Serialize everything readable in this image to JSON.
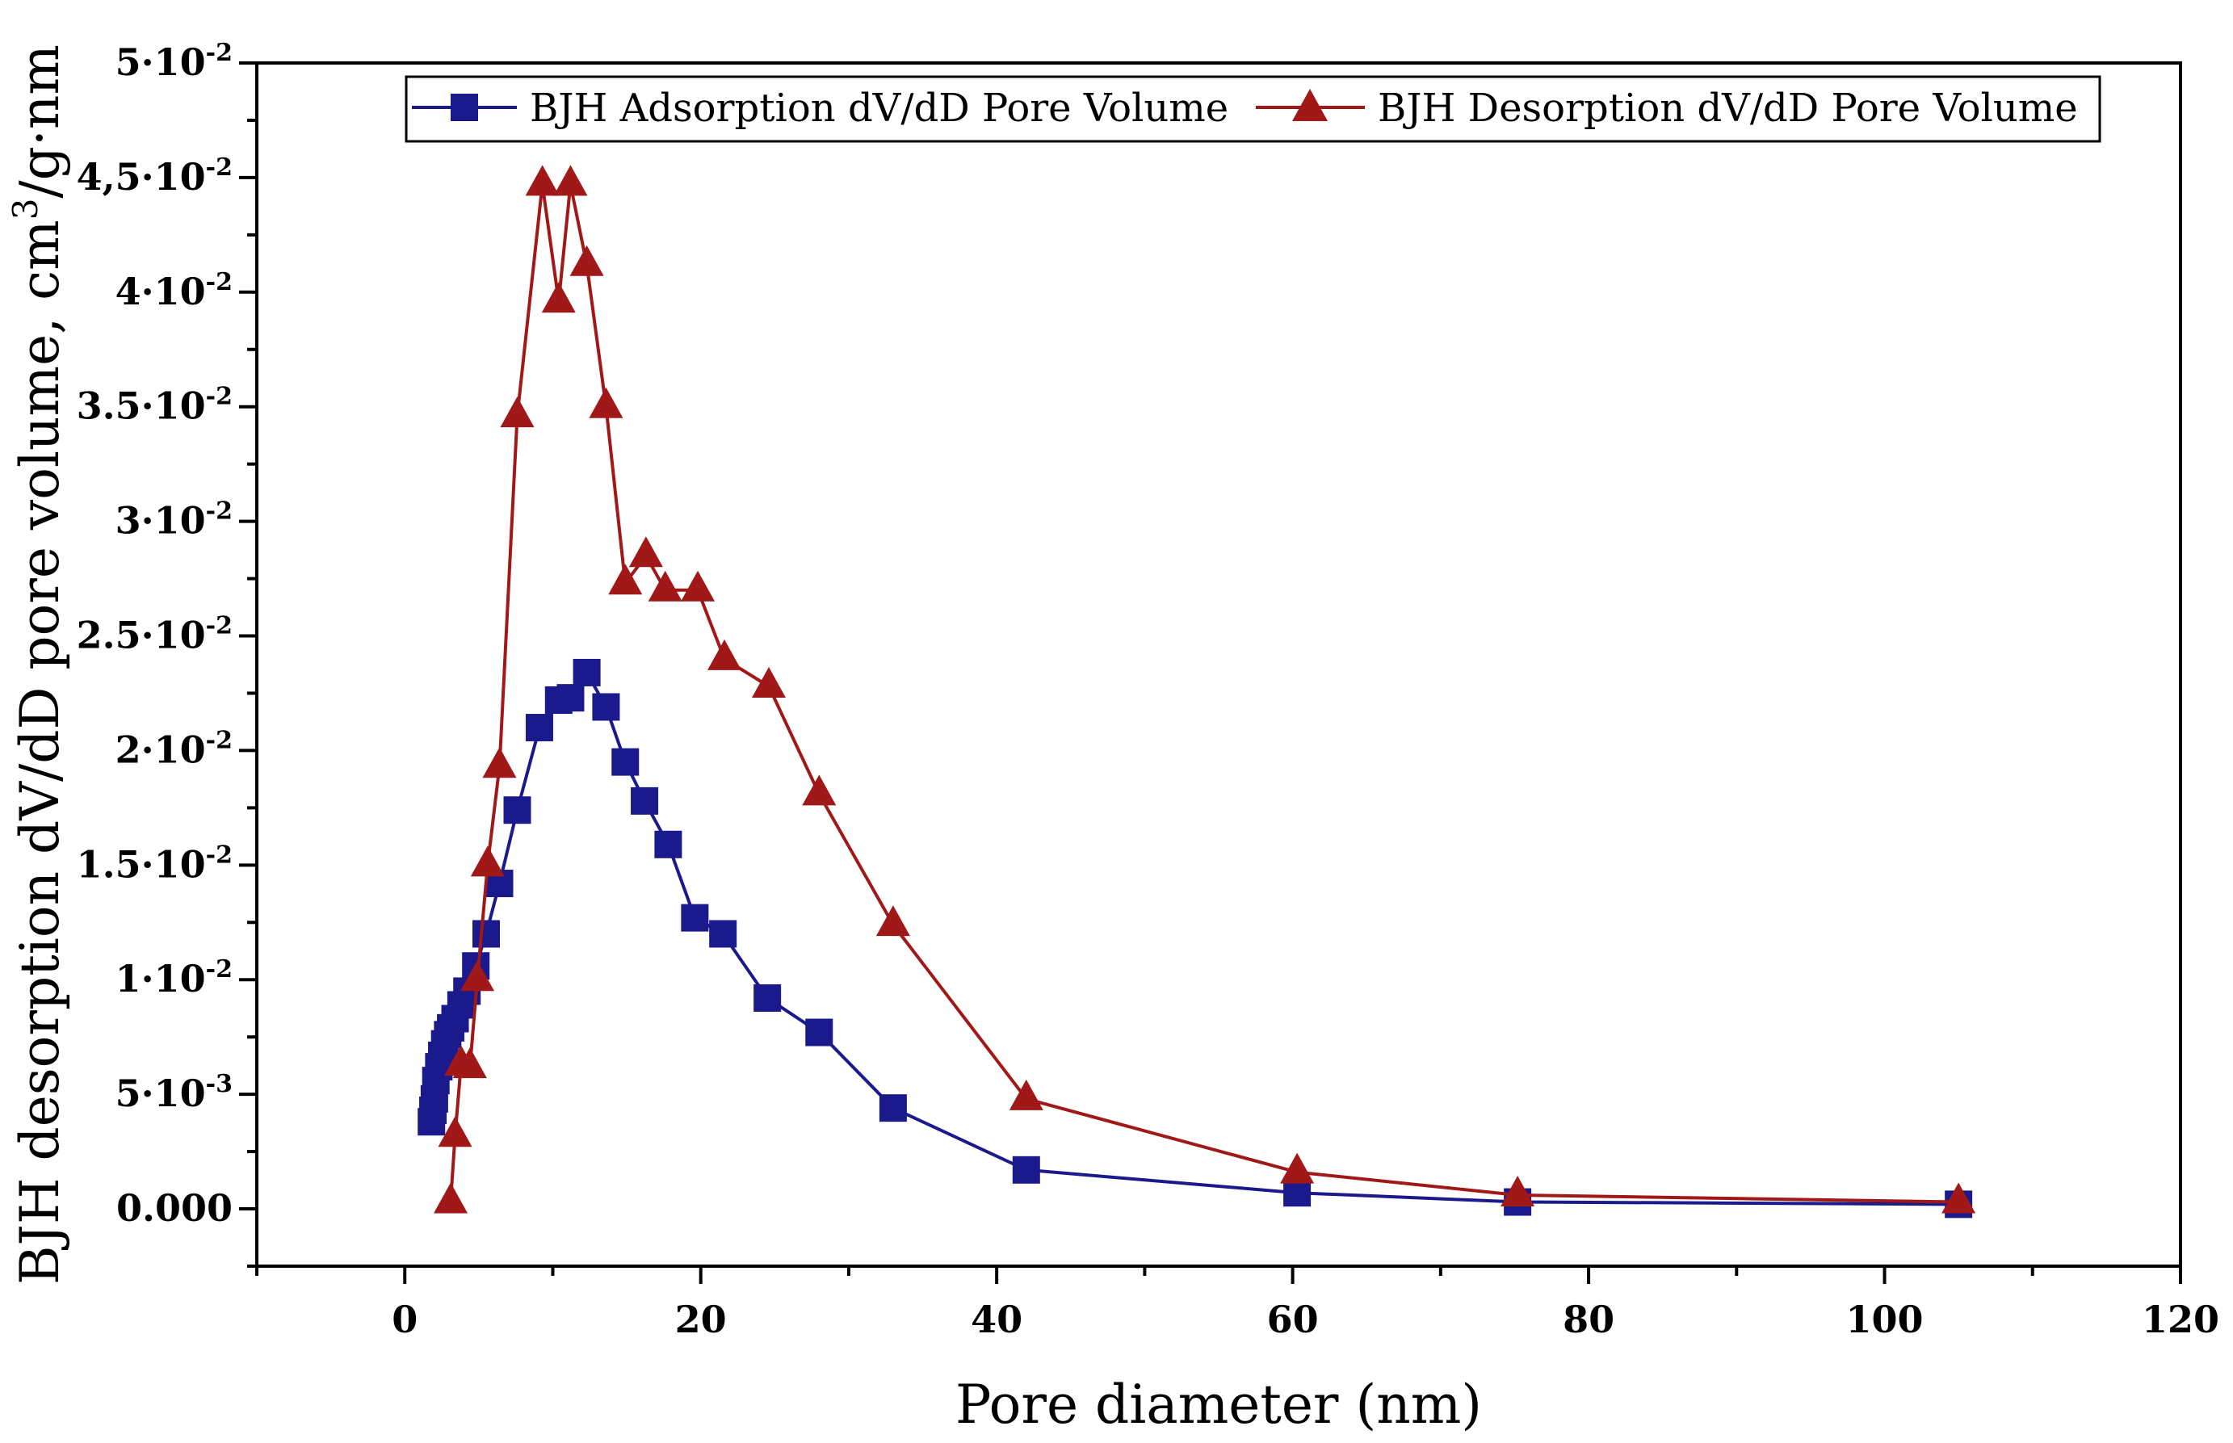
{
  "chart_data": {
    "type": "line",
    "title": "",
    "xlabel": "Pore diameter (nm)",
    "ylabel_main": "BJH desorption dV/dD pore volume, cm",
    "ylabel_sup": "3",
    "ylabel_tail": "/g·nm",
    "xlim": [
      -10,
      120
    ],
    "ylim": [
      -0.0025,
      0.05
    ],
    "x_ticks": [
      {
        "value": 0,
        "label": "0"
      },
      {
        "value": 20,
        "label": "20"
      },
      {
        "value": 40,
        "label": "40"
      },
      {
        "value": 60,
        "label": "60"
      },
      {
        "value": 80,
        "label": "80"
      },
      {
        "value": 100,
        "label": "100"
      },
      {
        "value": 120,
        "label": "120"
      }
    ],
    "y_ticks": [
      {
        "value": 0.0,
        "label": "0.000"
      },
      {
        "value": 0.005,
        "label": "5·10-3"
      },
      {
        "value": 0.01,
        "label": "1·10-2"
      },
      {
        "value": 0.015,
        "label": "1.5·10-2"
      },
      {
        "value": 0.02,
        "label": "2·10-2"
      },
      {
        "value": 0.025,
        "label": "2.5·10-2"
      },
      {
        "value": 0.03,
        "label": "3·10-2"
      },
      {
        "value": 0.035,
        "label": "3.5·10-2"
      },
      {
        "value": 0.04,
        "label": "4·10-2"
      },
      {
        "value": 0.045,
        "label": "4,5·10-2"
      },
      {
        "value": 0.05,
        "label": "5·10-2"
      }
    ],
    "legend_position": "top",
    "grid": false,
    "series": [
      {
        "name": "BJH Adsorption dV/dD Pore Volume",
        "color": "#1a1a8c",
        "marker": "square",
        "x": [
          1.8,
          1.9,
          2.0,
          2.1,
          2.3,
          2.5,
          2.7,
          2.9,
          3.1,
          3.4,
          3.8,
          4.2,
          4.8,
          5.5,
          6.4,
          7.6,
          9.1,
          10.4,
          11.2,
          12.3,
          13.6,
          14.9,
          16.2,
          17.8,
          19.6,
          21.5,
          24.5,
          28.0,
          33.0,
          42.0,
          60.3,
          75.2,
          105.0
        ],
        "y": [
          0.0038,
          0.0043,
          0.0048,
          0.0056,
          0.0062,
          0.0067,
          0.0072,
          0.0076,
          0.0079,
          0.0083,
          0.0089,
          0.0095,
          0.0106,
          0.012,
          0.0142,
          0.0174,
          0.021,
          0.0222,
          0.0223,
          0.0234,
          0.0219,
          0.0195,
          0.0178,
          0.0159,
          0.0127,
          0.012,
          0.0092,
          0.0077,
          0.0044,
          0.0017,
          0.0007,
          0.0003,
          0.0002
        ]
      },
      {
        "name": "BJH Desorption dV/dD Pore Volume",
        "color": "#a01818",
        "marker": "triangle",
        "x": [
          3.1,
          3.4,
          3.8,
          4.4,
          4.9,
          5.6,
          6.4,
          7.6,
          9.3,
          10.4,
          11.2,
          12.3,
          13.6,
          14.9,
          16.3,
          17.6,
          19.8,
          21.6,
          24.6,
          28.0,
          33.0,
          42.0,
          60.3,
          75.2,
          105.0
        ],
        "y": [
          0.0003,
          0.0032,
          0.0063,
          0.0062,
          0.01,
          0.015,
          0.0193,
          0.0346,
          0.0447,
          0.0396,
          0.0447,
          0.0412,
          0.035,
          0.0273,
          0.0285,
          0.027,
          0.027,
          0.024,
          0.0228,
          0.0181,
          0.0124,
          0.0048,
          0.0016,
          0.0006,
          0.0003
        ]
      }
    ]
  }
}
